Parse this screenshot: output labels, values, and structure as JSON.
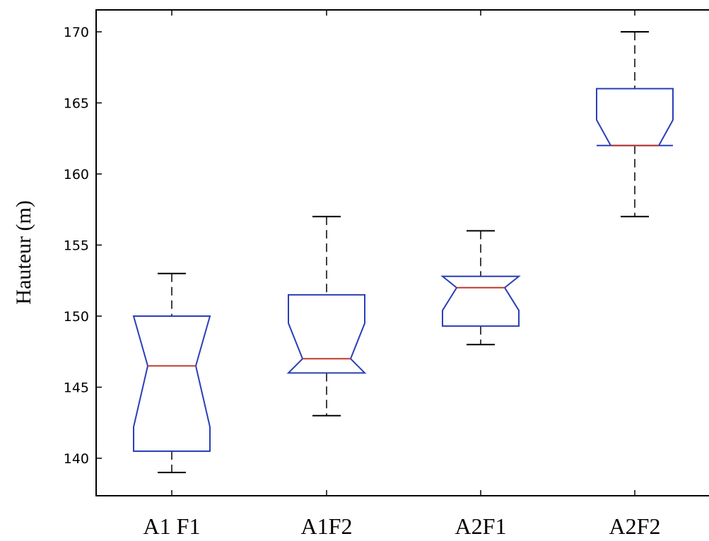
{
  "chart_data": {
    "type": "boxplot",
    "notched": true,
    "title": "",
    "xlabel": "",
    "ylabel": "Hauteur (m)",
    "ylim": [
      137.4,
      171.5
    ],
    "yticks": [
      140,
      145,
      150,
      155,
      160,
      165,
      170
    ],
    "categories": [
      "A1 F1",
      "A1F2",
      "A2F1",
      "A2F2"
    ],
    "boxes": [
      {
        "category": "A1 F1",
        "whisker_low": 139,
        "q1": 140.5,
        "median": 146.5,
        "q3": 150,
        "whisker_high": 153,
        "notch_low": 142.2,
        "notch_high": 150
      },
      {
        "category": "A1F2",
        "whisker_low": 143,
        "q1": 146,
        "median": 147,
        "q3": 151.5,
        "whisker_high": 157,
        "notch_low": 146,
        "notch_high": 149.5
      },
      {
        "category": "A2F1",
        "whisker_low": 148,
        "q1": 149.3,
        "median": 152,
        "q3": 152.8,
        "whisker_high": 156,
        "notch_low": 150.4,
        "notch_high": 152.8
      },
      {
        "category": "A2F2",
        "whisker_low": 157,
        "q1": 162,
        "median": 162,
        "q3": 166,
        "whisker_high": 170,
        "notch_low": 162,
        "notch_high": 163.8
      }
    ],
    "grid": false,
    "colors": {
      "box": "#2a3fb8",
      "median": "#c0392b",
      "whisker": "#000000",
      "axis": "#000000"
    }
  }
}
